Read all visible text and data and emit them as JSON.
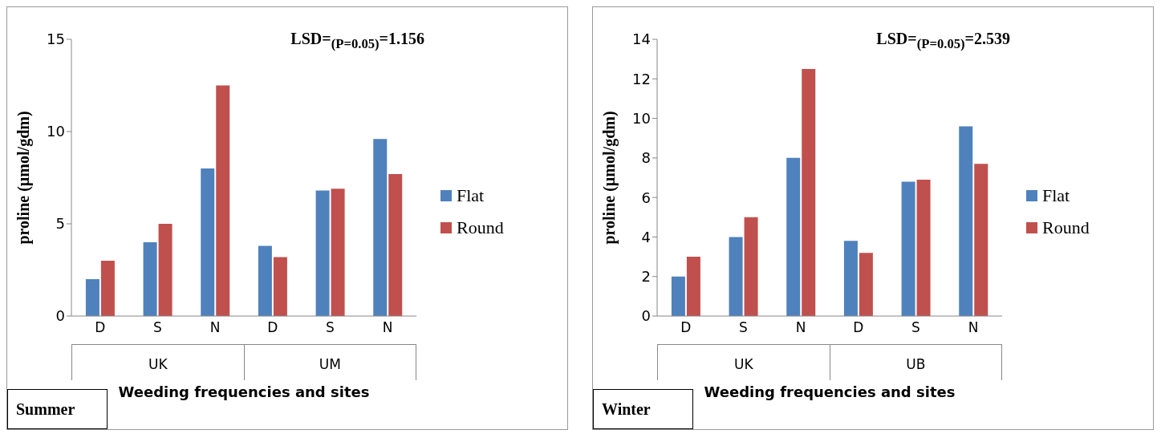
{
  "chart_data": [
    {
      "type": "bar",
      "title": "Summer",
      "xlabel": "Weeding frequencies and sites",
      "ylabel": "proline (µmol/gdm)",
      "categories": [
        "D",
        "S",
        "N",
        "D",
        "S",
        "N"
      ],
      "series": [
        {
          "name": "Flat",
          "color": "#4f81bd",
          "values": [
            2.0,
            4.0,
            8.0,
            3.8,
            6.8,
            9.6
          ]
        },
        {
          "name": "Round",
          "color": "#c0504d",
          "values": [
            3.0,
            5.0,
            12.5,
            3.2,
            6.9,
            7.7
          ]
        }
      ],
      "ylim": [
        0,
        15
      ],
      "yticks": [
        0,
        5,
        10,
        15
      ],
      "legend": "right",
      "annotations": [
        "LSD=$_{(P=0.05)}$=1.156",
        "UK",
        "UM"
      ]
    },
    {
      "type": "bar",
      "title": "Winter",
      "xlabel": "Weeding frequencies and sites",
      "ylabel": "proline (µmol/gdm)",
      "categories": [
        "D",
        "S",
        "N",
        "D",
        "S",
        "N"
      ],
      "series": [
        {
          "name": "Flat",
          "color": "#4f81bd",
          "values": [
            2.0,
            4.0,
            8.0,
            3.8,
            6.8,
            9.6
          ]
        },
        {
          "name": "Round",
          "color": "#c0504d",
          "values": [
            3.0,
            5.0,
            12.5,
            3.2,
            6.9,
            7.7
          ]
        }
      ],
      "ylim": [
        0,
        14
      ],
      "yticks": [
        0,
        2,
        4,
        6,
        8,
        10,
        12,
        14
      ],
      "legend": "right",
      "annotations": [
        "LSD=$_{(P=0.05)}$=2.539",
        "UK",
        "UB"
      ]
    }
  ]
}
